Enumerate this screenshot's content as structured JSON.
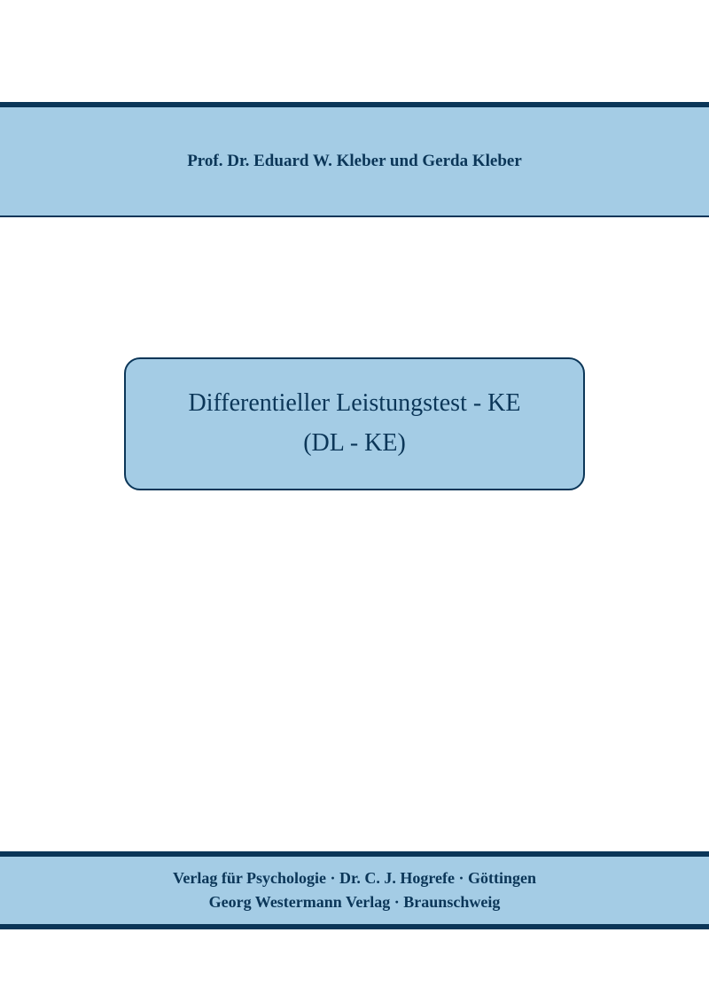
{
  "colors": {
    "band_bg": "#a4cce5",
    "dark_border": "#0b3658",
    "text": "#0b3658",
    "page_bg": "#ffffff"
  },
  "author_band": {
    "text": "Prof. Dr. Eduard W. Kleber und Gerda Kleber",
    "border_top_width": 6,
    "border_bottom_width": 2,
    "fontsize": 19
  },
  "title_box": {
    "line1": "Differentieller Leistungstest - KE",
    "line2": "(DL - KE)",
    "fontsize": 28,
    "border_radius": 18,
    "border_width": 2
  },
  "publisher_band": {
    "line1": "Verlag für Psychologie · Dr. C. J. Hogrefe · Göttingen",
    "line2": "Georg Westermann Verlag · Braunschweig",
    "border_top_width": 6,
    "border_bottom_width": 6,
    "fontsize": 18
  }
}
